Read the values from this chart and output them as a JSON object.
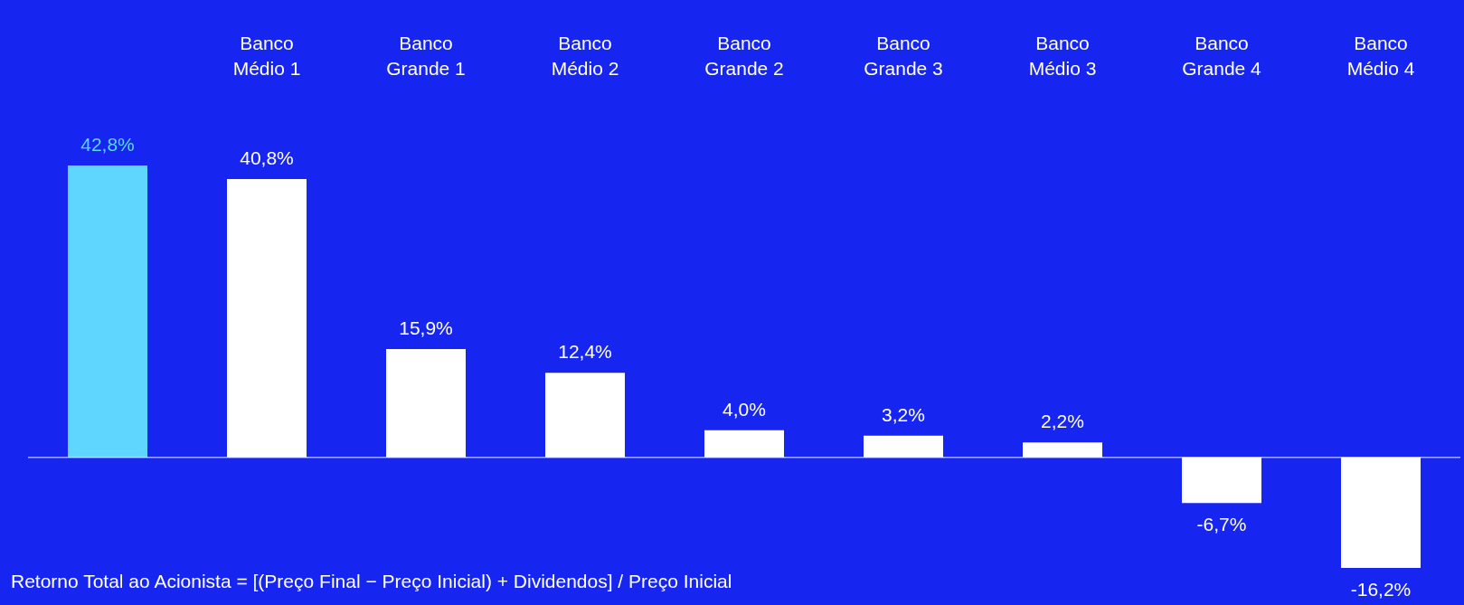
{
  "chart_data": {
    "type": "bar",
    "categories": [
      null,
      "Banco Médio 1",
      "Banco Grande 1",
      "Banco Médio 2",
      "Banco Grande 2",
      "Banco Grande 3",
      "Banco Médio 3",
      "Banco Grande 4",
      "Banco Médio 4"
    ],
    "values": [
      42.8,
      40.8,
      15.9,
      12.4,
      4.0,
      3.2,
      2.2,
      -6.7,
      -16.2
    ],
    "colors": [
      "#5fd6fd",
      "#ffffff",
      "#ffffff",
      "#ffffff",
      "#ffffff",
      "#ffffff",
      "#ffffff",
      "#ffffff",
      "#ffffff"
    ],
    "value_labels": [
      "42,8%",
      "40,8%",
      "15,9%",
      "12,4%",
      "4,0%",
      "3,2%",
      "2,2%",
      "-6,7%",
      "-16,2%"
    ],
    "annotations": [
      "Retorno Total ao Acionista  = [(Preço Final − Preço Inicial) + Dividendos] / Preço Inicial"
    ],
    "grid": false
  }
}
